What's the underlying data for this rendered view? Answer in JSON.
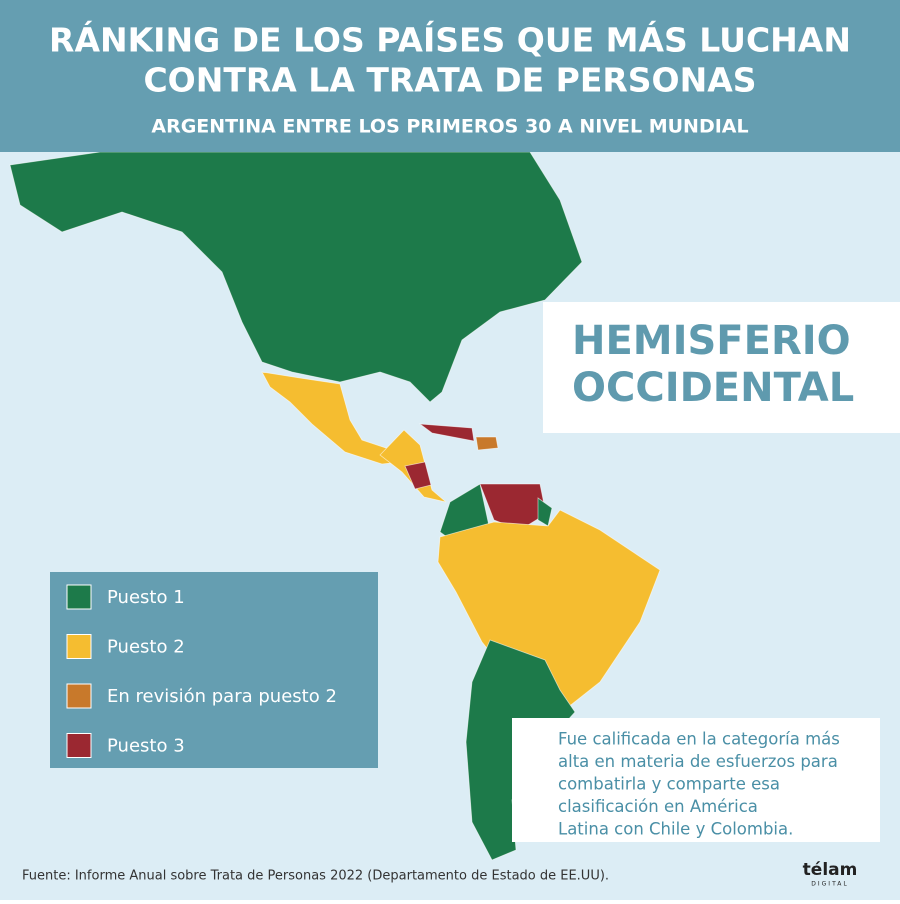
{
  "header": {
    "title": [
      "RÁNKING DE LOS PAÍSES QUE MÁS LUCHAN",
      "CONTRA LA TRATA DE PERSONAS"
    ],
    "subtitle": "ARGENTINA ENTRE LOS PRIMEROS 30 A NIVEL MUNDIAL"
  },
  "region_label": [
    "HEMISFERIO",
    "OCCIDENTAL"
  ],
  "legend": {
    "items": [
      {
        "label": "Puesto 1",
        "color": "#1d7a4a"
      },
      {
        "label": "Puesto 2",
        "color": "#f5bd30"
      },
      {
        "label": "En revisión para puesto 2",
        "color": "#c8792b"
      },
      {
        "label": "Puesto 3",
        "color": "#9b2831"
      }
    ]
  },
  "note": [
    "Fue calificada en la categoría más",
    "alta en materia de esfuerzos para",
    "combatirla y comparte esa",
    "clasificación en América",
    "Latina con Chile y Colombia."
  ],
  "source": "Fuente: Informe Anual sobre Trata de Personas 2022 (Departamento de Estado de EE.UU).",
  "logo": {
    "name": "télam",
    "tagline": "DIGITAL"
  }
}
